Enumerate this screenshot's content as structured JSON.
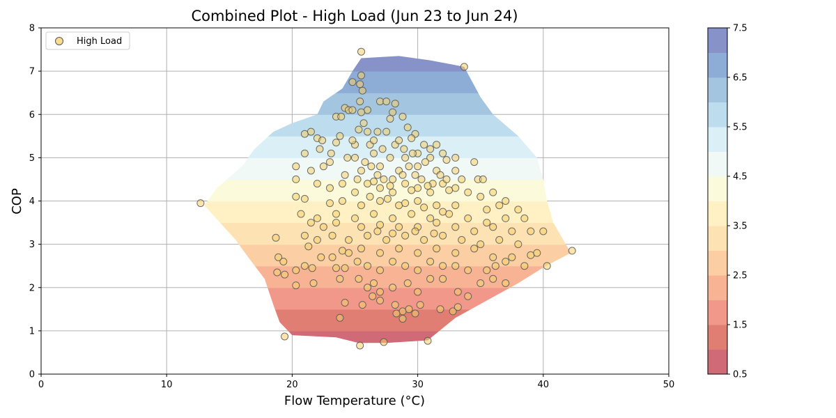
{
  "chart_data": {
    "type": "scatter",
    "title": "Combined Plot - High Load (Jun 23 to Jun 24)",
    "xlabel": "Flow Temperature (°C)",
    "ylabel": "COP",
    "xlim": [
      0,
      50
    ],
    "ylim": [
      0,
      8
    ],
    "xticks": [
      "0",
      "10",
      "20",
      "30",
      "40",
      "50"
    ],
    "yticks": [
      "0",
      "1",
      "2",
      "3",
      "4",
      "5",
      "6",
      "7",
      "8"
    ],
    "grid": true,
    "legend": {
      "placement": "top-left",
      "entries": [
        "High Load"
      ]
    },
    "colorbar": {
      "min": 0.5,
      "max": 7.5,
      "ticks": [
        "0.5",
        "1.5",
        "2.5",
        "3.5",
        "4.5",
        "5.5",
        "6.5",
        "7.5"
      ],
      "levels": [
        0.5,
        1.0,
        1.5,
        2.0,
        2.5,
        3.0,
        3.5,
        4.0,
        4.5,
        5.0,
        5.5,
        6.0,
        6.5,
        7.0,
        7.5
      ],
      "colors": [
        "#d06a76",
        "#e17e74",
        "#f2988a",
        "#f8b395",
        "#fbcfa3",
        "#fde2b4",
        "#fff1c4",
        "#fbfbdc",
        "#f0f9f6",
        "#daeff6",
        "#bddced",
        "#a3c5e0",
        "#8eadd6",
        "#8792c8"
      ]
    },
    "contour_region": {
      "top": [
        [
          24.8,
          7.0
        ],
        [
          25.5,
          7.3
        ],
        [
          28.5,
          7.35
        ],
        [
          31.0,
          7.25
        ],
        [
          33.7,
          7.1
        ],
        [
          35.0,
          6.4
        ],
        [
          36.0,
          6.0
        ],
        [
          38.0,
          5.5
        ],
        [
          39.5,
          5.0
        ],
        [
          40.0,
          4.5
        ],
        [
          40.3,
          4.0
        ],
        [
          40.8,
          3.5
        ],
        [
          41.8,
          3.0
        ],
        [
          42.2,
          2.8
        ]
      ],
      "bottom": [
        [
          42.2,
          2.8
        ],
        [
          40.2,
          2.5
        ],
        [
          38.0,
          2.1
        ],
        [
          35.5,
          1.7
        ],
        [
          33.0,
          1.3
        ],
        [
          30.8,
          0.78
        ],
        [
          27.5,
          0.72
        ],
        [
          25.3,
          0.72
        ],
        [
          23.5,
          0.85
        ],
        [
          20.0,
          0.9
        ],
        [
          19.0,
          1.2
        ],
        [
          18.5,
          1.6
        ],
        [
          17.8,
          2.2
        ],
        [
          16.5,
          2.7
        ],
        [
          15.5,
          3.1
        ],
        [
          13.0,
          3.9
        ],
        [
          14.0,
          4.3
        ],
        [
          16.0,
          4.8
        ],
        [
          17.0,
          5.2
        ],
        [
          18.5,
          5.6
        ],
        [
          20.0,
          5.8
        ],
        [
          22.0,
          6.0
        ],
        [
          22.5,
          6.3
        ],
        [
          24.0,
          6.6
        ]
      ]
    },
    "series": [
      {
        "name": "High Load",
        "color": "#f6d06a",
        "edge": "#555555",
        "points": [
          [
            25.5,
            7.45
          ],
          [
            33.7,
            7.1
          ],
          [
            12.7,
            3.95
          ],
          [
            42.3,
            2.85
          ],
          [
            40.3,
            2.5
          ],
          [
            19.4,
            0.87
          ],
          [
            25.4,
            0.66
          ],
          [
            27.3,
            0.74
          ],
          [
            30.8,
            0.77
          ],
          [
            25.5,
            6.9
          ],
          [
            25.6,
            6.55
          ],
          [
            25.4,
            6.7
          ],
          [
            24.8,
            6.75
          ],
          [
            25.4,
            6.3
          ],
          [
            27.0,
            6.3
          ],
          [
            27.5,
            6.3
          ],
          [
            24.2,
            6.15
          ],
          [
            24.5,
            6.1
          ],
          [
            26.0,
            6.1
          ],
          [
            28.2,
            6.25
          ],
          [
            23.5,
            5.95
          ],
          [
            23.9,
            5.95
          ],
          [
            28.0,
            6.05
          ],
          [
            28.8,
            5.95
          ],
          [
            24.8,
            6.1
          ],
          [
            25.5,
            6.05
          ],
          [
            27.8,
            5.9
          ],
          [
            25.7,
            5.8
          ],
          [
            29.2,
            5.7
          ],
          [
            25.3,
            5.65
          ],
          [
            26.8,
            5.6
          ],
          [
            27.5,
            5.6
          ],
          [
            29.8,
            5.55
          ],
          [
            21.0,
            5.55
          ],
          [
            21.5,
            5.6
          ],
          [
            23.8,
            5.5
          ],
          [
            29.5,
            5.45
          ],
          [
            25.0,
            5.3
          ],
          [
            26.2,
            5.3
          ],
          [
            28.2,
            5.3
          ],
          [
            30.5,
            5.3
          ],
          [
            31.5,
            5.3
          ],
          [
            22.0,
            5.45
          ],
          [
            22.4,
            5.4
          ],
          [
            21.0,
            5.1
          ],
          [
            22.2,
            5.2
          ],
          [
            23.1,
            5.1
          ],
          [
            24.4,
            5.0
          ],
          [
            26.5,
            5.1
          ],
          [
            27.8,
            5.0
          ],
          [
            29.0,
            5.0
          ],
          [
            30.0,
            5.1
          ],
          [
            31.0,
            5.0
          ],
          [
            32.0,
            5.1
          ],
          [
            33.0,
            5.0
          ],
          [
            34.5,
            4.9
          ],
          [
            20.3,
            4.8
          ],
          [
            21.5,
            4.7
          ],
          [
            22.5,
            4.8
          ],
          [
            23.0,
            4.9
          ],
          [
            24.2,
            4.6
          ],
          [
            25.5,
            4.7
          ],
          [
            27.0,
            4.8
          ],
          [
            28.5,
            4.7
          ],
          [
            30.0,
            4.8
          ],
          [
            31.5,
            4.7
          ],
          [
            33.0,
            4.7
          ],
          [
            34.8,
            4.5
          ],
          [
            35.2,
            4.5
          ],
          [
            20.3,
            4.5
          ],
          [
            22.0,
            4.4
          ],
          [
            23.0,
            4.3
          ],
          [
            24.0,
            4.4
          ],
          [
            25.0,
            4.2
          ],
          [
            26.0,
            4.4
          ],
          [
            27.0,
            4.3
          ],
          [
            28.0,
            4.2
          ],
          [
            29.0,
            4.4
          ],
          [
            30.0,
            4.3
          ],
          [
            31.0,
            4.2
          ],
          [
            32.0,
            4.4
          ],
          [
            33.0,
            4.3
          ],
          [
            34.0,
            4.2
          ],
          [
            35.0,
            4.1
          ],
          [
            36.0,
            4.2
          ],
          [
            37.0,
            4.0
          ],
          [
            20.3,
            4.1
          ],
          [
            21.0,
            4.05
          ],
          [
            23.0,
            3.95
          ],
          [
            24.0,
            4.0
          ],
          [
            25.5,
            3.9
          ],
          [
            27.0,
            4.0
          ],
          [
            28.5,
            3.9
          ],
          [
            30.0,
            4.0
          ],
          [
            31.5,
            3.9
          ],
          [
            33.0,
            3.9
          ],
          [
            35.5,
            3.8
          ],
          [
            36.5,
            3.9
          ],
          [
            38.0,
            3.8
          ],
          [
            20.7,
            3.7
          ],
          [
            22.0,
            3.6
          ],
          [
            23.5,
            3.7
          ],
          [
            25.0,
            3.6
          ],
          [
            26.5,
            3.7
          ],
          [
            28.0,
            3.6
          ],
          [
            29.5,
            3.7
          ],
          [
            31.0,
            3.6
          ],
          [
            32.5,
            3.7
          ],
          [
            34.0,
            3.6
          ],
          [
            35.5,
            3.5
          ],
          [
            37.0,
            3.6
          ],
          [
            38.5,
            3.6
          ],
          [
            21.5,
            3.5
          ],
          [
            22.5,
            3.4
          ],
          [
            23.5,
            3.5
          ],
          [
            25.5,
            3.4
          ],
          [
            27.0,
            3.45
          ],
          [
            28.5,
            3.4
          ],
          [
            30.0,
            3.4
          ],
          [
            31.5,
            3.5
          ],
          [
            33.0,
            3.4
          ],
          [
            34.5,
            3.3
          ],
          [
            36.0,
            3.4
          ],
          [
            37.5,
            3.3
          ],
          [
            39.0,
            3.3
          ],
          [
            40.0,
            3.3
          ],
          [
            18.7,
            3.15
          ],
          [
            21.0,
            3.2
          ],
          [
            22.0,
            3.1
          ],
          [
            23.2,
            3.2
          ],
          [
            24.5,
            3.1
          ],
          [
            26.0,
            3.2
          ],
          [
            27.5,
            3.1
          ],
          [
            29.0,
            3.2
          ],
          [
            30.5,
            3.1
          ],
          [
            32.0,
            3.2
          ],
          [
            33.5,
            3.1
          ],
          [
            35.0,
            3.0
          ],
          [
            36.5,
            3.1
          ],
          [
            38.0,
            3.0
          ],
          [
            21.3,
            2.95
          ],
          [
            24.0,
            2.85
          ],
          [
            24.5,
            2.8
          ],
          [
            25.5,
            2.9
          ],
          [
            27.0,
            2.8
          ],
          [
            28.5,
            2.9
          ],
          [
            30.0,
            2.8
          ],
          [
            31.5,
            2.9
          ],
          [
            33.0,
            2.8
          ],
          [
            34.5,
            2.9
          ],
          [
            36.0,
            2.7
          ],
          [
            37.5,
            2.7
          ],
          [
            39.0,
            2.75
          ],
          [
            39.5,
            2.8
          ],
          [
            18.9,
            2.7
          ],
          [
            19.3,
            2.6
          ],
          [
            20.3,
            2.4
          ],
          [
            21.0,
            2.5
          ],
          [
            21.6,
            2.45
          ],
          [
            22.3,
            2.7
          ],
          [
            23.2,
            2.7
          ],
          [
            23.5,
            2.45
          ],
          [
            24.2,
            2.45
          ],
          [
            25.2,
            2.6
          ],
          [
            26.0,
            2.5
          ],
          [
            27.0,
            2.4
          ],
          [
            28.0,
            2.6
          ],
          [
            29.0,
            2.5
          ],
          [
            30.0,
            2.4
          ],
          [
            31.0,
            2.6
          ],
          [
            32.0,
            2.5
          ],
          [
            33.0,
            2.5
          ],
          [
            34.0,
            2.4
          ],
          [
            35.5,
            2.4
          ],
          [
            36.2,
            2.5
          ],
          [
            37.0,
            2.6
          ],
          [
            38.5,
            2.5
          ],
          [
            18.8,
            2.35
          ],
          [
            19.4,
            2.3
          ],
          [
            20.3,
            2.05
          ],
          [
            21.7,
            2.1
          ],
          [
            23.8,
            2.2
          ],
          [
            25.3,
            2.2
          ],
          [
            26.0,
            2.0
          ],
          [
            26.5,
            2.1
          ],
          [
            27.0,
            1.9
          ],
          [
            28.0,
            2.0
          ],
          [
            29.2,
            2.1
          ],
          [
            30.0,
            1.9
          ],
          [
            31.0,
            2.2
          ],
          [
            32.0,
            2.2
          ],
          [
            33.2,
            1.9
          ],
          [
            34.0,
            1.8
          ],
          [
            35.0,
            2.1
          ],
          [
            36.0,
            2.2
          ],
          [
            37.0,
            2.1
          ],
          [
            24.2,
            1.65
          ],
          [
            25.6,
            1.6
          ],
          [
            26.4,
            1.8
          ],
          [
            27.0,
            1.7
          ],
          [
            28.2,
            1.6
          ],
          [
            28.8,
            1.45
          ],
          [
            29.3,
            1.5
          ],
          [
            29.8,
            1.4
          ],
          [
            30.2,
            1.6
          ],
          [
            31.8,
            1.5
          ],
          [
            32.8,
            1.45
          ],
          [
            33.2,
            1.55
          ],
          [
            23.8,
            1.3
          ],
          [
            28.3,
            1.4
          ],
          [
            28.8,
            1.28
          ],
          [
            25.0,
            5.0
          ],
          [
            25.8,
            4.9
          ],
          [
            26.3,
            4.8
          ],
          [
            26.8,
            4.6
          ],
          [
            27.3,
            4.5
          ],
          [
            28.0,
            4.5
          ],
          [
            28.8,
            4.6
          ],
          [
            29.3,
            4.8
          ],
          [
            29.8,
            4.6
          ],
          [
            30.3,
            4.5
          ],
          [
            31.2,
            4.4
          ],
          [
            31.8,
            4.6
          ],
          [
            32.3,
            4.5
          ],
          [
            33.5,
            4.5
          ],
          [
            25.2,
            4.5
          ],
          [
            26.5,
            4.45
          ],
          [
            27.8,
            4.35
          ],
          [
            29.5,
            4.25
          ],
          [
            30.8,
            4.35
          ],
          [
            32.5,
            4.25
          ],
          [
            26.2,
            4.1
          ],
          [
            27.6,
            4.05
          ],
          [
            29.0,
            3.95
          ],
          [
            30.5,
            3.85
          ],
          [
            32.0,
            3.75
          ],
          [
            26.8,
            3.3
          ],
          [
            28.0,
            3.25
          ],
          [
            29.8,
            3.3
          ],
          [
            31.3,
            3.25
          ],
          [
            28.9,
            5.2
          ],
          [
            29.6,
            5.1
          ],
          [
            30.6,
            4.9
          ],
          [
            27.2,
            5.2
          ],
          [
            26.5,
            5.4
          ],
          [
            26.0,
            5.6
          ],
          [
            24.8,
            5.4
          ],
          [
            23.5,
            5.35
          ],
          [
            28.5,
            5.4
          ],
          [
            31.0,
            5.2
          ],
          [
            32.3,
            4.95
          ]
        ]
      }
    ]
  }
}
